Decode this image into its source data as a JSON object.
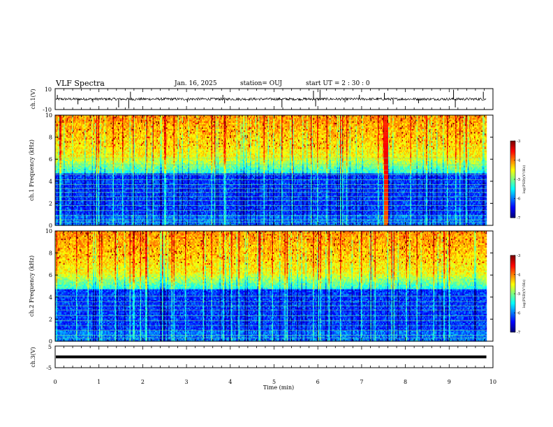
{
  "header": {
    "title": "VLF Spectra",
    "date": "Jan. 16, 2025",
    "station": "station= OUJ",
    "start_ut": "start UT = 2 : 30 : 0"
  },
  "chart_data": [
    {
      "type": "line",
      "panel": "ch1-waveform",
      "ylabel": "ch.1(V)",
      "xlim": [
        0,
        10
      ],
      "ylim": [
        -10,
        10
      ],
      "yticks": [
        "10",
        "-10"
      ],
      "baseline": 0,
      "data_end_min": 9.85,
      "spikes": [
        {
          "x": 0.05,
          "y": 4
        },
        {
          "x": 0.52,
          "y": -5
        },
        {
          "x": 0.86,
          "y": -3
        },
        {
          "x": 1.45,
          "y": -8
        },
        {
          "x": 1.68,
          "y": -9
        },
        {
          "x": 1.72,
          "y": 7
        },
        {
          "x": 3.02,
          "y": -3
        },
        {
          "x": 3.83,
          "y": 4
        },
        {
          "x": 3.87,
          "y": -4
        },
        {
          "x": 5.18,
          "y": -8
        },
        {
          "x": 5.9,
          "y": 8
        },
        {
          "x": 5.95,
          "y": -7
        },
        {
          "x": 6.05,
          "y": 9
        },
        {
          "x": 6.62,
          "y": -3
        },
        {
          "x": 6.95,
          "y": 4
        },
        {
          "x": 7.52,
          "y": 6
        },
        {
          "x": 7.72,
          "y": -5
        },
        {
          "x": 8.3,
          "y": -4
        },
        {
          "x": 9.1,
          "y": 9
        },
        {
          "x": 9.14,
          "y": -8
        },
        {
          "x": 9.78,
          "y": 7
        }
      ]
    },
    {
      "type": "heatmap",
      "panel": "ch1-spectrogram",
      "ylabel": "ch.1 Frequency (kHz)",
      "xlim": [
        0,
        10
      ],
      "ylim": [
        0,
        10
      ],
      "yticks": [
        "0",
        "2",
        "4",
        "6",
        "8",
        "10"
      ],
      "data_end_min": 9.85,
      "strong_event_min": 7.55,
      "noise_lines_khz": [
        0.3,
        0.5,
        0.9,
        1.35,
        1.8,
        2.25,
        2.6,
        3.0,
        3.35,
        3.7,
        4.15,
        4.6,
        5.0,
        5.5,
        6.1
      ]
    },
    {
      "type": "heatmap",
      "panel": "ch2-spectrogram",
      "ylabel": "ch.2 Frequency (kHz)",
      "xlim": [
        0,
        10
      ],
      "ylim": [
        0,
        10
      ],
      "yticks": [
        "0",
        "2",
        "4",
        "6",
        "8",
        "10"
      ],
      "data_end_min": 9.85,
      "noise_lines_khz": [
        0.3,
        0.55,
        1.0,
        1.4,
        1.85,
        2.3,
        2.8,
        3.2,
        3.6,
        4.1
      ]
    },
    {
      "type": "line",
      "panel": "ch3-waveform",
      "ylabel": "ch.3(V)",
      "xlabel": "Time (min)",
      "xlim": [
        0,
        10
      ],
      "ylim": [
        -5,
        5
      ],
      "yticks": [
        "5",
        "-5"
      ],
      "xticks": [
        "0",
        "1",
        "2",
        "3",
        "4",
        "5",
        "6",
        "7",
        "8",
        "9",
        "10"
      ],
      "level": 0,
      "data_end_min": 9.85
    }
  ],
  "colorbars": [
    {
      "label": "log(PSD)(V²/Hz)",
      "ticks": [
        "-3",
        "-4",
        "-5",
        "-6",
        "-7"
      ],
      "range": [
        -7,
        -3
      ]
    },
    {
      "label": "log(PSD)(V²/Hz)",
      "ticks": [
        "-3",
        "-4",
        "-5",
        "-6",
        "-7"
      ],
      "range": [
        -7,
        -3
      ]
    }
  ]
}
